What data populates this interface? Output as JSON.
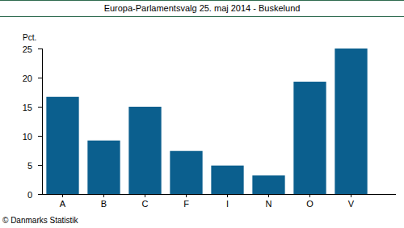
{
  "chart_data": {
    "type": "bar",
    "title": "Europa-Parlamentsvalg 25. maj 2014 - Buskelund",
    "y_label": "Pct.",
    "source": "© Danmarks Statistik",
    "categories": [
      "A",
      "B",
      "C",
      "F",
      "I",
      "N",
      "O",
      "V"
    ],
    "values": [
      16.7,
      9.2,
      15.0,
      7.4,
      4.9,
      3.2,
      19.3,
      25.0
    ],
    "color": "#0b5f8e",
    "ylim": [
      0,
      25
    ],
    "yticks": [
      0,
      5,
      10,
      15,
      20,
      25
    ],
    "grid": false
  }
}
